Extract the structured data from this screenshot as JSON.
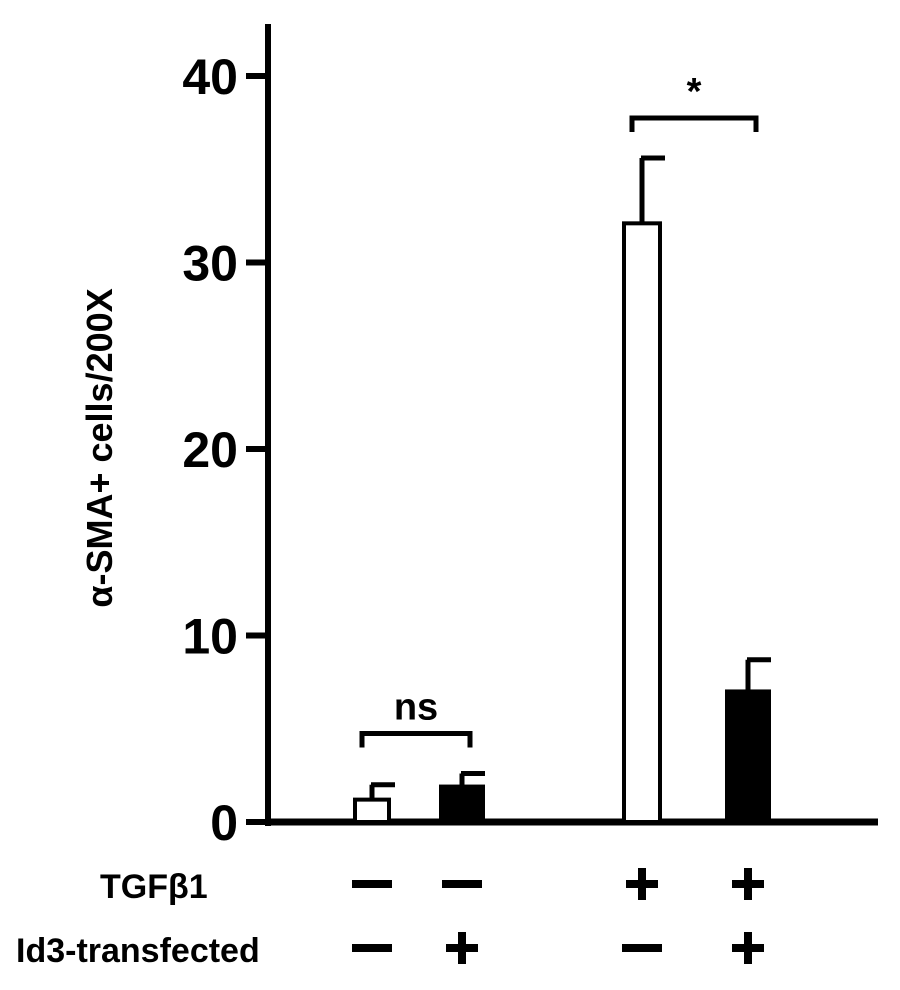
{
  "chart_data": {
    "type": "bar",
    "ylabel": "α-SMA+ cells/200X",
    "ylim": [
      0,
      43
    ],
    "yticks": [
      0,
      10,
      20,
      30,
      40
    ],
    "grid": false,
    "groups": [
      {
        "bars": [
          {
            "value": 1.2,
            "error": 0.8,
            "fill": "#ffffff"
          },
          {
            "value": 1.9,
            "error": 0.7,
            "fill": "#000000"
          }
        ]
      },
      {
        "bars": [
          {
            "value": 32.1,
            "error": 3.5,
            "fill": "#ffffff"
          },
          {
            "value": 7.0,
            "error": 1.7,
            "fill": "#000000"
          }
        ]
      }
    ],
    "significance": [
      {
        "group": 0,
        "label": "ns"
      },
      {
        "group": 1,
        "label": "*"
      }
    ],
    "conditions": [
      {
        "label": "TGFβ1",
        "values": [
          "−",
          "−",
          "+",
          "+"
        ]
      },
      {
        "label": "Id3-transfected",
        "values": [
          "−",
          "+",
          "−",
          "+"
        ]
      }
    ]
  }
}
